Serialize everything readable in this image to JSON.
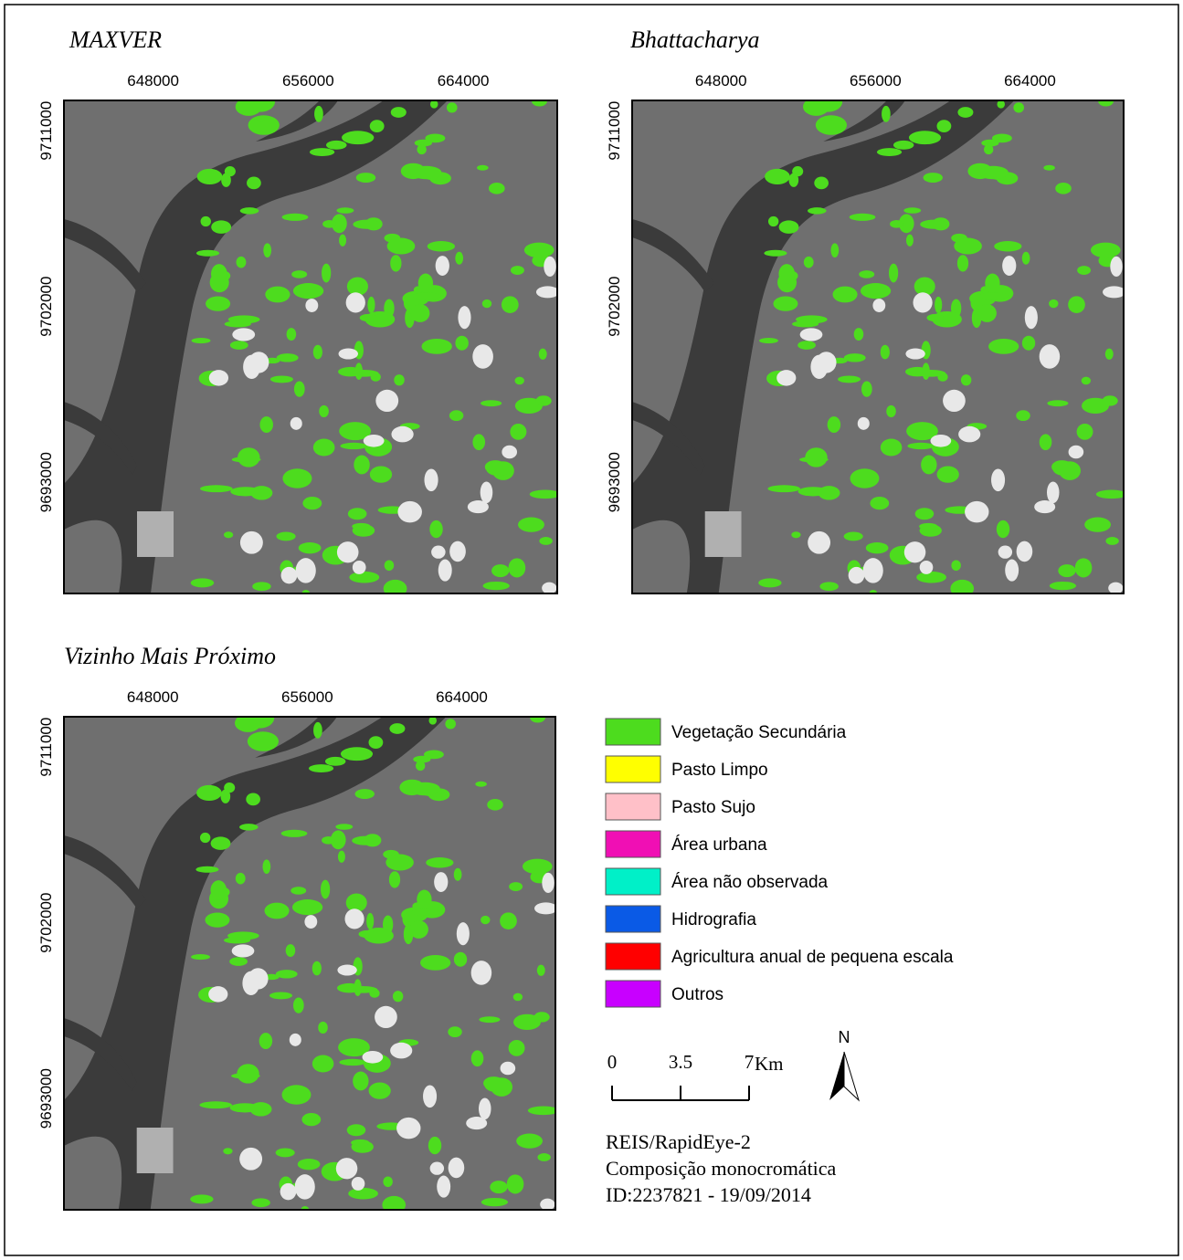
{
  "panels": [
    {
      "title": "MAXVER"
    },
    {
      "title": "Bhattacharya"
    },
    {
      "title": "Vizinho Mais Próximo"
    }
  ],
  "coordinates": {
    "xticks": [
      648000,
      656000,
      664000
    ],
    "yticks": [
      9711000,
      9702000,
      9693000
    ],
    "xlim": [
      643400,
      668850
    ],
    "ylim": [
      9687300,
      9712550
    ]
  },
  "legend": [
    {
      "label": "Vegetação Secundária",
      "color": "#4ddc1e"
    },
    {
      "label": "Pasto Limpo",
      "color": "#ffff00"
    },
    {
      "label": "Pasto Sujo",
      "color": "#ffc0c8"
    },
    {
      "label": "Área urbana",
      "color": "#f00fb4"
    },
    {
      "label": "Área não observada",
      "color": "#00f0c8"
    },
    {
      "label": "Hidrografia",
      "color": "#0a5ae6"
    },
    {
      "label": "Agricultura anual de pequena escala",
      "color": "#ff0000"
    },
    {
      "label": "Outros",
      "color": "#c800ff"
    }
  ],
  "scale_bar": {
    "ticks": [
      0,
      3.5,
      7
    ],
    "unit": "Km"
  },
  "north": "N",
  "source": [
    "REIS/RapidEye-2",
    "Composição monocromática",
    "ID:2237821 - 19/09/2014"
  ]
}
